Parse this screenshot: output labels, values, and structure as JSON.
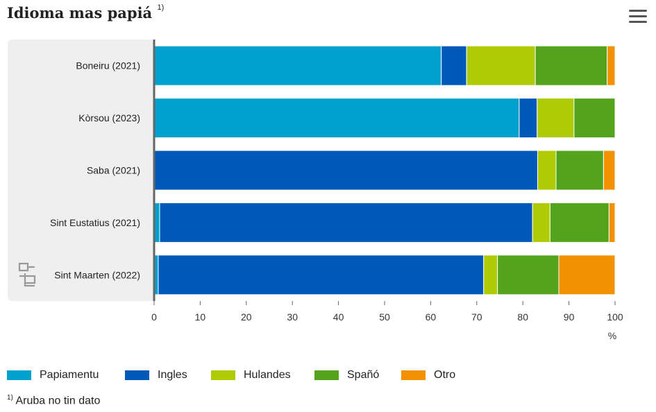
{
  "title": "Idioma mas papiá",
  "title_note": "1)",
  "chart_data": {
    "type": "bar",
    "orientation": "horizontal",
    "stacked": true,
    "categories": [
      "Boneiru (2021)",
      "Kòrsou (2023)",
      "Saba (2021)",
      "Sint Eustatius (2021)",
      "Sint Maarten (2022)"
    ],
    "series": [
      {
        "name": "Papiamentu",
        "color": "#00a1cd",
        "values": [
          62.3,
          79.2,
          0.0,
          1.2,
          0.9
        ]
      },
      {
        "name": "Ingles",
        "color": "#0058b8",
        "values": [
          5.5,
          3.9,
          83.2,
          80.9,
          70.6
        ]
      },
      {
        "name": "Hulandes",
        "color": "#afcb05",
        "values": [
          14.9,
          8.0,
          4.0,
          3.8,
          3.0
        ]
      },
      {
        "name": "Spañó",
        "color": "#53a31d",
        "values": [
          15.6,
          8.9,
          10.3,
          12.8,
          13.3
        ]
      },
      {
        "name": "Otro",
        "color": "#f39200",
        "values": [
          1.7,
          0.0,
          2.5,
          1.3,
          12.2
        ]
      }
    ],
    "xaxis": {
      "ticks": [
        "0",
        "10",
        "20",
        "30",
        "40",
        "50",
        "60",
        "70",
        "80",
        "90",
        "100"
      ],
      "unit": "%",
      "range": [
        0,
        100
      ]
    },
    "grid": false,
    "legend_position": "bottom"
  },
  "footnote_marker": "1)",
  "footnote_text": "Aruba no tin dato",
  "icons": {
    "menu": "hamburger-menu-icon",
    "logo": "cbs-logo-icon"
  }
}
